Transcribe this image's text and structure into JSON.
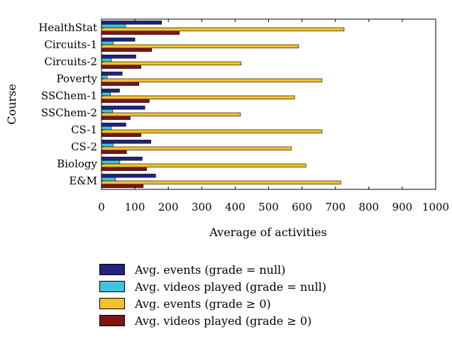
{
  "chart_data": {
    "type": "bar",
    "orientation": "horizontal",
    "categories": [
      "HealthStat",
      "Circuits-1",
      "Circuits-2",
      "Poverty",
      "SSChem-1",
      "SSChem-2",
      "CS-1",
      "CS-2",
      "Biology",
      "E&M"
    ],
    "series": [
      {
        "name": "Avg. events (grade = null)",
        "color": "#23237a",
        "values": [
          180,
          100,
          103,
          62,
          54,
          130,
          73,
          148,
          122,
          162
        ]
      },
      {
        "name": "Avg. videos played (grade = null)",
        "color": "#3dc5e3",
        "values": [
          72,
          35,
          30,
          17,
          27,
          33,
          30,
          35,
          55,
          42
        ]
      },
      {
        "name": "Avg. events (grade ≥ 0)",
        "color": "#f2c12e",
        "values": [
          726,
          590,
          418,
          660,
          578,
          416,
          660,
          568,
          612,
          716
        ]
      },
      {
        "name": "Avg. videos played (grade ≥ 0)",
        "color": "#7e1416",
        "values": [
          233,
          150,
          118,
          112,
          143,
          86,
          118,
          75,
          135,
          125
        ]
      }
    ],
    "xlabel": "Average of activities",
    "ylabel": "Course",
    "xlim": [
      0,
      1000
    ],
    "xticks": [
      "0",
      "100",
      "200",
      "300",
      "400",
      "500",
      "600",
      "700",
      "800",
      "900",
      "1000"
    ],
    "grid": false,
    "legend_position": "bottom"
  }
}
